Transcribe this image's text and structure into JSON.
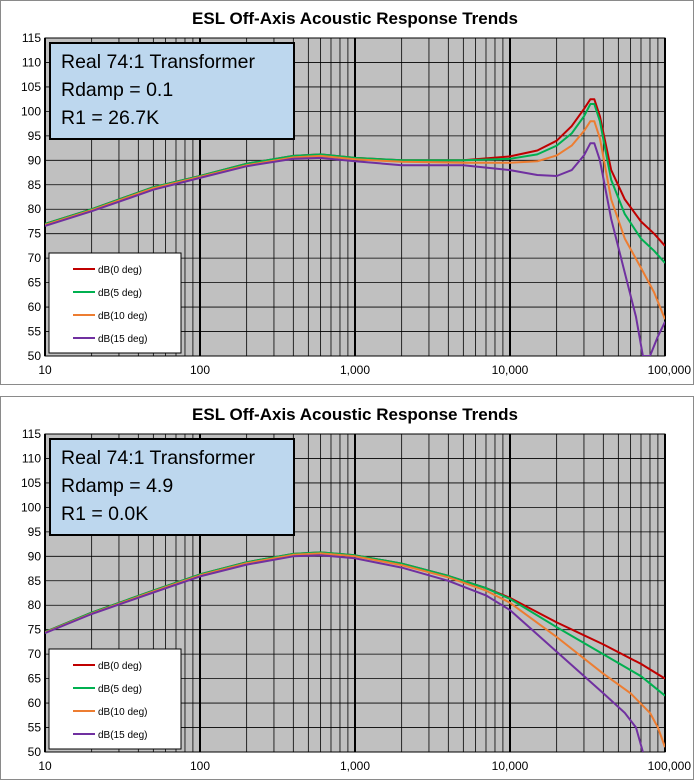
{
  "chart_data": [
    {
      "type": "line",
      "title": "ESL Off-Axis Acoustic Response Trends",
      "xlabel": "",
      "ylabel": "",
      "xscale": "log",
      "xlim": [
        10,
        100000
      ],
      "ylim": [
        50,
        115
      ],
      "yticks": [
        50,
        55,
        60,
        65,
        70,
        75,
        80,
        85,
        90,
        95,
        100,
        105,
        110,
        115
      ],
      "xticks": [
        10,
        100,
        1000,
        10000,
        100000
      ],
      "xtick_labels": [
        "10",
        "100",
        "1,000",
        "10,000",
        "100,000"
      ],
      "grid": true,
      "plot_background": "#c0c0c0",
      "legend_position": "bottom-left",
      "annotation": [
        "Real 74:1 Transformer",
        "Rdamp = 0.1",
        "R1 = 26.7K"
      ],
      "series": [
        {
          "name": "dB(0 deg)",
          "color": "#c00000",
          "points": [
            [
              10,
              77
            ],
            [
              20,
              80
            ],
            [
              50,
              84.5
            ],
            [
              100,
              86.8
            ],
            [
              200,
              89.3
            ],
            [
              400,
              90.9
            ],
            [
              600,
              91.2
            ],
            [
              1000,
              90.5
            ],
            [
              2000,
              90
            ],
            [
              5000,
              90
            ],
            [
              10000,
              90.8
            ],
            [
              15000,
              92
            ],
            [
              20000,
              94
            ],
            [
              25000,
              97
            ],
            [
              30000,
              100.5
            ],
            [
              33000,
              102.5
            ],
            [
              35000,
              102.5
            ],
            [
              38000,
              99
            ],
            [
              45000,
              88
            ],
            [
              55000,
              82
            ],
            [
              70000,
              77.5
            ],
            [
              85000,
              75
            ],
            [
              100000,
              72.5
            ]
          ]
        },
        {
          "name": "dB(5 deg)",
          "color": "#00b050",
          "points": [
            [
              10,
              77
            ],
            [
              20,
              80
            ],
            [
              50,
              84.5
            ],
            [
              100,
              86.8
            ],
            [
              200,
              89.3
            ],
            [
              400,
              90.9
            ],
            [
              600,
              91.2
            ],
            [
              1000,
              90.5
            ],
            [
              2000,
              90
            ],
            [
              5000,
              90
            ],
            [
              10000,
              90.3
            ],
            [
              15000,
              91.2
            ],
            [
              20000,
              93
            ],
            [
              25000,
              95.5
            ],
            [
              30000,
              99
            ],
            [
              33000,
              101.5
            ],
            [
              35000,
              101.5
            ],
            [
              38000,
              98
            ],
            [
              45000,
              86
            ],
            [
              55000,
              79
            ],
            [
              70000,
              74
            ],
            [
              85000,
              71.5
            ],
            [
              100000,
              69
            ]
          ]
        },
        {
          "name": "dB(10 deg)",
          "color": "#ed7d31",
          "points": [
            [
              10,
              76.8
            ],
            [
              20,
              79.8
            ],
            [
              50,
              84.3
            ],
            [
              100,
              86.6
            ],
            [
              200,
              89
            ],
            [
              400,
              90.6
            ],
            [
              600,
              90.9
            ],
            [
              1000,
              90.2
            ],
            [
              2000,
              89.7
            ],
            [
              5000,
              89.5
            ],
            [
              10000,
              89.5
            ],
            [
              15000,
              89.8
            ],
            [
              20000,
              91
            ],
            [
              25000,
              93
            ],
            [
              30000,
              96
            ],
            [
              33000,
              98
            ],
            [
              35000,
              98
            ],
            [
              38000,
              94.5
            ],
            [
              45000,
              82
            ],
            [
              55000,
              74
            ],
            [
              70000,
              68
            ],
            [
              85000,
              63
            ],
            [
              100000,
              57.5
            ]
          ]
        },
        {
          "name": "dB(15 deg)",
          "color": "#7030a0",
          "points": [
            [
              10,
              76.6
            ],
            [
              20,
              79.6
            ],
            [
              50,
              84
            ],
            [
              100,
              86.4
            ],
            [
              200,
              88.8
            ],
            [
              400,
              90.3
            ],
            [
              600,
              90.5
            ],
            [
              1000,
              89.8
            ],
            [
              2000,
              89
            ],
            [
              5000,
              89
            ],
            [
              10000,
              88
            ],
            [
              15000,
              87
            ],
            [
              20000,
              86.8
            ],
            [
              25000,
              88
            ],
            [
              30000,
              91
            ],
            [
              33000,
              93.5
            ],
            [
              35000,
              93.5
            ],
            [
              38000,
              90
            ],
            [
              45000,
              78
            ],
            [
              55000,
              67
            ],
            [
              65000,
              58
            ],
            [
              72000,
              50
            ],
            [
              80000,
              50
            ],
            [
              90000,
              54
            ],
            [
              100000,
              57
            ]
          ]
        }
      ]
    },
    {
      "type": "line",
      "title": "ESL Off-Axis Acoustic Response Trends",
      "xlabel": "",
      "ylabel": "",
      "xscale": "log",
      "xlim": [
        10,
        100000
      ],
      "ylim": [
        50,
        115
      ],
      "yticks": [
        50,
        55,
        60,
        65,
        70,
        75,
        80,
        85,
        90,
        95,
        100,
        105,
        110,
        115
      ],
      "xticks": [
        10,
        100,
        1000,
        10000,
        100000
      ],
      "xtick_labels": [
        "10",
        "100",
        "1,000",
        "10,000",
        "100,000"
      ],
      "grid": true,
      "plot_background": "#c0c0c0",
      "legend_position": "bottom-left",
      "annotation": [
        "Real 74:1 Transformer",
        "Rdamp = 4.9",
        "R1 = 0.0K"
      ],
      "series": [
        {
          "name": "dB(0 deg)",
          "color": "#c00000",
          "points": [
            [
              10,
              74.5
            ],
            [
              20,
              78.5
            ],
            [
              50,
              83
            ],
            [
              100,
              86.3
            ],
            [
              200,
              88.8
            ],
            [
              400,
              90.5
            ],
            [
              600,
              90.8
            ],
            [
              1000,
              90.2
            ],
            [
              2000,
              88.5
            ],
            [
              4000,
              86
            ],
            [
              7000,
              83.5
            ],
            [
              10000,
              81.5
            ],
            [
              20000,
              76.5
            ],
            [
              40000,
              72
            ],
            [
              70000,
              68
            ],
            [
              100000,
              65
            ]
          ]
        },
        {
          "name": "dB(5 deg)",
          "color": "#00b050",
          "points": [
            [
              10,
              74.5
            ],
            [
              20,
              78.5
            ],
            [
              50,
              83
            ],
            [
              100,
              86.3
            ],
            [
              200,
              88.8
            ],
            [
              400,
              90.5
            ],
            [
              600,
              90.8
            ],
            [
              1000,
              90.2
            ],
            [
              2000,
              88.5
            ],
            [
              4000,
              86
            ],
            [
              7000,
              83.5
            ],
            [
              10000,
              81.3
            ],
            [
              20000,
              75.5
            ],
            [
              40000,
              70
            ],
            [
              70000,
              65.5
            ],
            [
              100000,
              61.5
            ]
          ]
        },
        {
          "name": "dB(10 deg)",
          "color": "#ed7d31",
          "points": [
            [
              10,
              74.4
            ],
            [
              20,
              78.3
            ],
            [
              50,
              82.8
            ],
            [
              100,
              86.1
            ],
            [
              200,
              88.6
            ],
            [
              400,
              90.3
            ],
            [
              600,
              90.6
            ],
            [
              1000,
              90
            ],
            [
              2000,
              88.2
            ],
            [
              4000,
              85.7
            ],
            [
              7000,
              83
            ],
            [
              10000,
              80.5
            ],
            [
              20000,
              73.5
            ],
            [
              40000,
              66
            ],
            [
              60000,
              62
            ],
            [
              80000,
              58
            ],
            [
              90000,
              55
            ],
            [
              100000,
              51
            ]
          ]
        },
        {
          "name": "dB(15 deg)",
          "color": "#7030a0",
          "points": [
            [
              10,
              74.3
            ],
            [
              20,
              78.2
            ],
            [
              50,
              82.6
            ],
            [
              100,
              85.9
            ],
            [
              200,
              88.3
            ],
            [
              400,
              90
            ],
            [
              600,
              90.2
            ],
            [
              1000,
              89.6
            ],
            [
              2000,
              87.7
            ],
            [
              4000,
              85
            ],
            [
              7000,
              82
            ],
            [
              10000,
              79
            ],
            [
              20000,
              70.5
            ],
            [
              40000,
              62
            ],
            [
              55000,
              58
            ],
            [
              65000,
              55
            ],
            [
              72000,
              50
            ]
          ]
        }
      ]
    }
  ]
}
